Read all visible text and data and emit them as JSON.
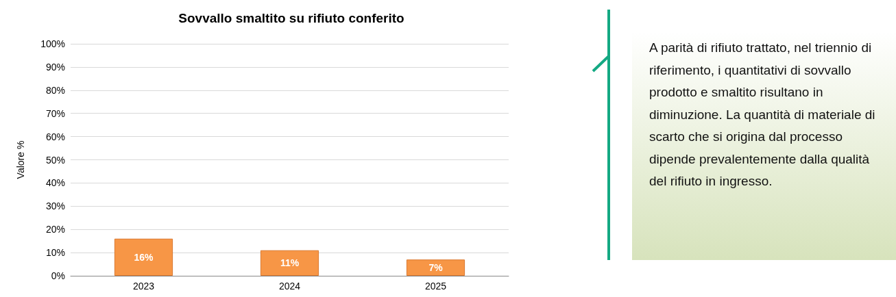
{
  "chart_data": {
    "type": "bar",
    "title": "Sovvallo smaltito su rifiuto conferito",
    "ylabel": "Valore %",
    "categories": [
      "2023",
      "2024",
      "2025"
    ],
    "values": [
      16,
      11,
      7
    ],
    "value_labels": [
      "16%",
      "11%",
      "7%"
    ],
    "color": "#f79646",
    "ylim": [
      0,
      100
    ],
    "yticks": [
      {
        "value": 0,
        "label": "0%"
      },
      {
        "value": 10,
        "label": "10%"
      },
      {
        "value": 20,
        "label": "20%"
      },
      {
        "value": 30,
        "label": "30%"
      },
      {
        "value": 40,
        "label": "40%"
      },
      {
        "value": 50,
        "label": "50%"
      },
      {
        "value": 60,
        "label": "60%"
      },
      {
        "value": 70,
        "label": "70%"
      },
      {
        "value": 80,
        "label": "80%"
      },
      {
        "value": 90,
        "label": "90%"
      },
      {
        "value": 100,
        "label": "100%"
      }
    ],
    "grid": "y",
    "annotations": [
      "A parità di rifiuto trattato, nel triennio di riferimento, i quantitativi di sovvallo prodotto e smaltito risultano in diminuzione. La quantità di materiale di scarto che si origina dal processo dipende prevalentemente dalla qualità del rifiuto in ingresso."
    ]
  }
}
